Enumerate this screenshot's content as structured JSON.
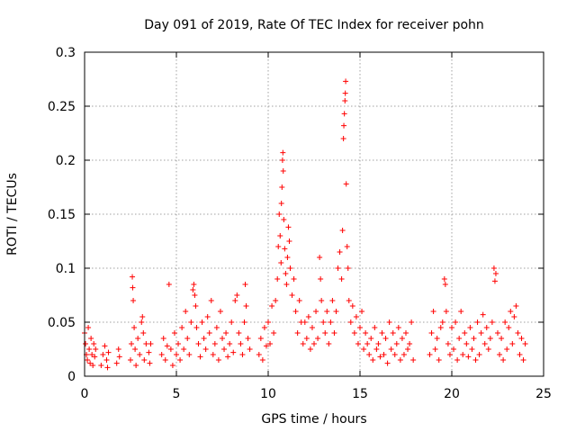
{
  "chart_data": {
    "type": "scatter",
    "title": "Day 091 of 2019, Rate Of TEC Index for receiver pohn",
    "xlabel": "GPS time / hours",
    "ylabel": "ROTI / TECUs",
    "xlim": [
      0,
      25
    ],
    "ylim": [
      0,
      0.3
    ],
    "x_ticks": [
      0,
      5,
      10,
      15,
      20,
      25
    ],
    "x_tick_labels": [
      "0",
      "5",
      "10",
      "15",
      "20",
      "25"
    ],
    "y_ticks": [
      0,
      0.05,
      0.1,
      0.15,
      0.2,
      0.25,
      0.3
    ],
    "y_tick_labels": [
      "0",
      "0.05",
      "0.1",
      "0.15",
      "0.2",
      "0.25",
      "0.3"
    ],
    "grid": true,
    "marker": "+",
    "marker_color": "#ff0000",
    "series": [
      {
        "name": "ROTI",
        "points": [
          [
            0.0,
            0.04
          ],
          [
            0.05,
            0.03
          ],
          [
            0.1,
            0.02
          ],
          [
            0.15,
            0.015
          ],
          [
            0.2,
            0.045
          ],
          [
            0.25,
            0.025
          ],
          [
            0.3,
            0.012
          ],
          [
            0.35,
            0.035
          ],
          [
            0.4,
            0.02
          ],
          [
            0.45,
            0.01
          ],
          [
            0.5,
            0.03
          ],
          [
            0.55,
            0.018
          ],
          [
            0.6,
            0.025
          ],
          [
            0.9,
            0.01
          ],
          [
            1.0,
            0.02
          ],
          [
            1.1,
            0.028
          ],
          [
            1.2,
            0.015
          ],
          [
            1.25,
            0.008
          ],
          [
            1.3,
            0.022
          ],
          [
            1.75,
            0.012
          ],
          [
            1.85,
            0.025
          ],
          [
            1.9,
            0.018
          ],
          [
            2.5,
            0.015
          ],
          [
            2.55,
            0.03
          ],
          [
            2.6,
            0.092
          ],
          [
            2.62,
            0.082
          ],
          [
            2.65,
            0.07
          ],
          [
            2.7,
            0.045
          ],
          [
            2.75,
            0.025
          ],
          [
            2.8,
            0.01
          ],
          [
            2.9,
            0.035
          ],
          [
            3.0,
            0.02
          ],
          [
            3.1,
            0.05
          ],
          [
            3.15,
            0.055
          ],
          [
            3.2,
            0.04
          ],
          [
            3.25,
            0.015
          ],
          [
            3.35,
            0.03
          ],
          [
            3.5,
            0.022
          ],
          [
            3.55,
            0.012
          ],
          [
            3.6,
            0.03
          ],
          [
            4.2,
            0.02
          ],
          [
            4.3,
            0.035
          ],
          [
            4.4,
            0.015
          ],
          [
            4.5,
            0.028
          ],
          [
            4.6,
            0.085
          ],
          [
            4.7,
            0.025
          ],
          [
            4.8,
            0.01
          ],
          [
            4.9,
            0.04
          ],
          [
            5.0,
            0.02
          ],
          [
            5.1,
            0.03
          ],
          [
            5.2,
            0.015
          ],
          [
            5.3,
            0.045
          ],
          [
            5.4,
            0.025
          ],
          [
            5.5,
            0.06
          ],
          [
            5.6,
            0.035
          ],
          [
            5.7,
            0.02
          ],
          [
            5.8,
            0.05
          ],
          [
            5.9,
            0.08
          ],
          [
            5.95,
            0.085
          ],
          [
            6.0,
            0.075
          ],
          [
            6.05,
            0.065
          ],
          [
            6.1,
            0.045
          ],
          [
            6.2,
            0.03
          ],
          [
            6.3,
            0.018
          ],
          [
            6.4,
            0.05
          ],
          [
            6.5,
            0.035
          ],
          [
            6.6,
            0.025
          ],
          [
            6.7,
            0.055
          ],
          [
            6.8,
            0.04
          ],
          [
            6.9,
            0.07
          ],
          [
            7.0,
            0.02
          ],
          [
            7.1,
            0.03
          ],
          [
            7.2,
            0.045
          ],
          [
            7.3,
            0.015
          ],
          [
            7.4,
            0.06
          ],
          [
            7.5,
            0.035
          ],
          [
            7.6,
            0.025
          ],
          [
            7.7,
            0.04
          ],
          [
            7.8,
            0.018
          ],
          [
            7.9,
            0.03
          ],
          [
            8.0,
            0.05
          ],
          [
            8.1,
            0.022
          ],
          [
            8.2,
            0.07
          ],
          [
            8.3,
            0.075
          ],
          [
            8.4,
            0.04
          ],
          [
            8.5,
            0.03
          ],
          [
            8.6,
            0.02
          ],
          [
            8.7,
            0.05
          ],
          [
            8.75,
            0.085
          ],
          [
            8.8,
            0.065
          ],
          [
            8.9,
            0.035
          ],
          [
            9.0,
            0.025
          ],
          [
            9.5,
            0.02
          ],
          [
            9.6,
            0.035
          ],
          [
            9.7,
            0.015
          ],
          [
            9.8,
            0.045
          ],
          [
            9.9,
            0.028
          ],
          [
            10.0,
            0.05
          ],
          [
            10.1,
            0.03
          ],
          [
            10.2,
            0.065
          ],
          [
            10.3,
            0.04
          ],
          [
            10.4,
            0.07
          ],
          [
            10.5,
            0.09
          ],
          [
            10.55,
            0.12
          ],
          [
            10.6,
            0.15
          ],
          [
            10.65,
            0.13
          ],
          [
            10.7,
            0.105
          ],
          [
            10.72,
            0.16
          ],
          [
            10.75,
            0.175
          ],
          [
            10.78,
            0.2
          ],
          [
            10.8,
            0.207
          ],
          [
            10.82,
            0.19
          ],
          [
            10.85,
            0.145
          ],
          [
            10.9,
            0.118
          ],
          [
            10.95,
            0.095
          ],
          [
            11.0,
            0.085
          ],
          [
            11.05,
            0.11
          ],
          [
            11.1,
            0.138
          ],
          [
            11.15,
            0.125
          ],
          [
            11.2,
            0.1
          ],
          [
            11.3,
            0.075
          ],
          [
            11.4,
            0.09
          ],
          [
            11.5,
            0.06
          ],
          [
            11.6,
            0.04
          ],
          [
            11.7,
            0.07
          ],
          [
            11.8,
            0.05
          ],
          [
            11.9,
            0.03
          ],
          [
            12.0,
            0.05
          ],
          [
            12.1,
            0.035
          ],
          [
            12.2,
            0.055
          ],
          [
            12.3,
            0.025
          ],
          [
            12.4,
            0.045
          ],
          [
            12.5,
            0.03
          ],
          [
            12.6,
            0.06
          ],
          [
            12.7,
            0.035
          ],
          [
            12.8,
            0.11
          ],
          [
            12.85,
            0.09
          ],
          [
            12.9,
            0.07
          ],
          [
            13.0,
            0.05
          ],
          [
            13.1,
            0.04
          ],
          [
            13.2,
            0.06
          ],
          [
            13.3,
            0.03
          ],
          [
            13.4,
            0.05
          ],
          [
            13.5,
            0.07
          ],
          [
            13.6,
            0.04
          ],
          [
            13.7,
            0.06
          ],
          [
            13.8,
            0.1
          ],
          [
            13.9,
            0.115
          ],
          [
            14.0,
            0.09
          ],
          [
            14.05,
            0.135
          ],
          [
            14.1,
            0.22
          ],
          [
            14.12,
            0.232
          ],
          [
            14.15,
            0.243
          ],
          [
            14.18,
            0.255
          ],
          [
            14.2,
            0.262
          ],
          [
            14.22,
            0.273
          ],
          [
            14.25,
            0.178
          ],
          [
            14.3,
            0.12
          ],
          [
            14.35,
            0.1
          ],
          [
            14.4,
            0.07
          ],
          [
            14.5,
            0.05
          ],
          [
            14.6,
            0.065
          ],
          [
            14.7,
            0.04
          ],
          [
            14.8,
            0.055
          ],
          [
            14.9,
            0.03
          ],
          [
            15.0,
            0.045
          ],
          [
            15.1,
            0.06
          ],
          [
            15.2,
            0.025
          ],
          [
            15.3,
            0.04
          ],
          [
            15.4,
            0.03
          ],
          [
            15.5,
            0.02
          ],
          [
            15.6,
            0.035
          ],
          [
            15.7,
            0.015
          ],
          [
            15.8,
            0.045
          ],
          [
            15.9,
            0.025
          ],
          [
            16.0,
            0.03
          ],
          [
            16.1,
            0.018
          ],
          [
            16.2,
            0.04
          ],
          [
            16.3,
            0.02
          ],
          [
            16.4,
            0.035
          ],
          [
            16.5,
            0.012
          ],
          [
            16.6,
            0.05
          ],
          [
            16.7,
            0.025
          ],
          [
            16.8,
            0.04
          ],
          [
            16.9,
            0.02
          ],
          [
            17.0,
            0.03
          ],
          [
            17.1,
            0.045
          ],
          [
            17.2,
            0.015
          ],
          [
            17.3,
            0.035
          ],
          [
            17.4,
            0.02
          ],
          [
            17.5,
            0.04
          ],
          [
            17.6,
            0.025
          ],
          [
            17.7,
            0.03
          ],
          [
            17.8,
            0.05
          ],
          [
            17.9,
            0.015
          ],
          [
            18.8,
            0.02
          ],
          [
            18.9,
            0.04
          ],
          [
            19.0,
            0.06
          ],
          [
            19.1,
            0.025
          ],
          [
            19.2,
            0.035
          ],
          [
            19.3,
            0.015
          ],
          [
            19.4,
            0.045
          ],
          [
            19.5,
            0.05
          ],
          [
            19.6,
            0.09
          ],
          [
            19.65,
            0.085
          ],
          [
            19.7,
            0.06
          ],
          [
            19.8,
            0.03
          ],
          [
            19.9,
            0.02
          ],
          [
            20.0,
            0.045
          ],
          [
            20.1,
            0.025
          ],
          [
            20.2,
            0.05
          ],
          [
            20.3,
            0.015
          ],
          [
            20.4,
            0.035
          ],
          [
            20.5,
            0.06
          ],
          [
            20.6,
            0.02
          ],
          [
            20.7,
            0.04
          ],
          [
            20.8,
            0.03
          ],
          [
            20.9,
            0.018
          ],
          [
            21.0,
            0.045
          ],
          [
            21.1,
            0.025
          ],
          [
            21.2,
            0.035
          ],
          [
            21.3,
            0.015
          ],
          [
            21.4,
            0.05
          ],
          [
            21.5,
            0.02
          ],
          [
            21.6,
            0.04
          ],
          [
            21.7,
            0.057
          ],
          [
            21.8,
            0.03
          ],
          [
            21.9,
            0.045
          ],
          [
            22.0,
            0.025
          ],
          [
            22.1,
            0.035
          ],
          [
            22.2,
            0.05
          ],
          [
            22.3,
            0.1
          ],
          [
            22.35,
            0.088
          ],
          [
            22.4,
            0.095
          ],
          [
            22.5,
            0.04
          ],
          [
            22.6,
            0.02
          ],
          [
            22.7,
            0.035
          ],
          [
            22.8,
            0.015
          ],
          [
            22.9,
            0.05
          ],
          [
            23.0,
            0.025
          ],
          [
            23.1,
            0.045
          ],
          [
            23.2,
            0.06
          ],
          [
            23.3,
            0.03
          ],
          [
            23.4,
            0.055
          ],
          [
            23.5,
            0.065
          ],
          [
            23.6,
            0.04
          ],
          [
            23.7,
            0.02
          ],
          [
            23.8,
            0.035
          ],
          [
            23.9,
            0.015
          ],
          [
            24.0,
            0.03
          ]
        ]
      }
    ]
  }
}
